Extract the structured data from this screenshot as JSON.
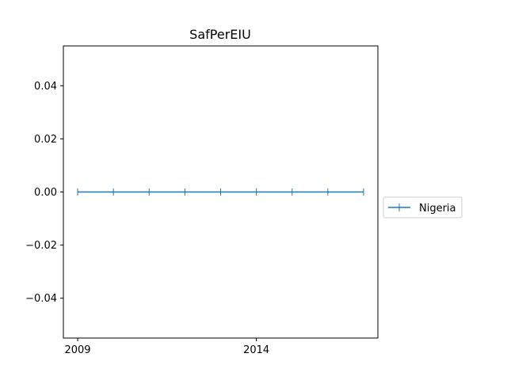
{
  "chart_data": {
    "type": "line",
    "title": "SafPerEIU",
    "xlabel": "",
    "ylabel": "",
    "x": [
      2009,
      2010,
      2011,
      2012,
      2013,
      2014,
      2015,
      2016,
      2017
    ],
    "x_tick_labels": [
      "2009",
      "2014"
    ],
    "x_ticks": [
      2009,
      2014
    ],
    "xlim": [
      2008.6,
      2017.4
    ],
    "ylim": [
      -0.055,
      0.055
    ],
    "y_ticks": [
      -0.04,
      -0.02,
      0.0,
      0.02,
      0.04
    ],
    "y_tick_labels": [
      "−0.04",
      "−0.02",
      "0.00",
      "0.02",
      "0.04"
    ],
    "series": [
      {
        "name": "Nigeria",
        "color": "#1f77b4",
        "marker": "|",
        "values": [
          0,
          0,
          0,
          0,
          0,
          0,
          0,
          0,
          0
        ]
      }
    ],
    "legend": {
      "placement": "outside-right",
      "entries": [
        "Nigeria"
      ]
    },
    "grid": false
  }
}
